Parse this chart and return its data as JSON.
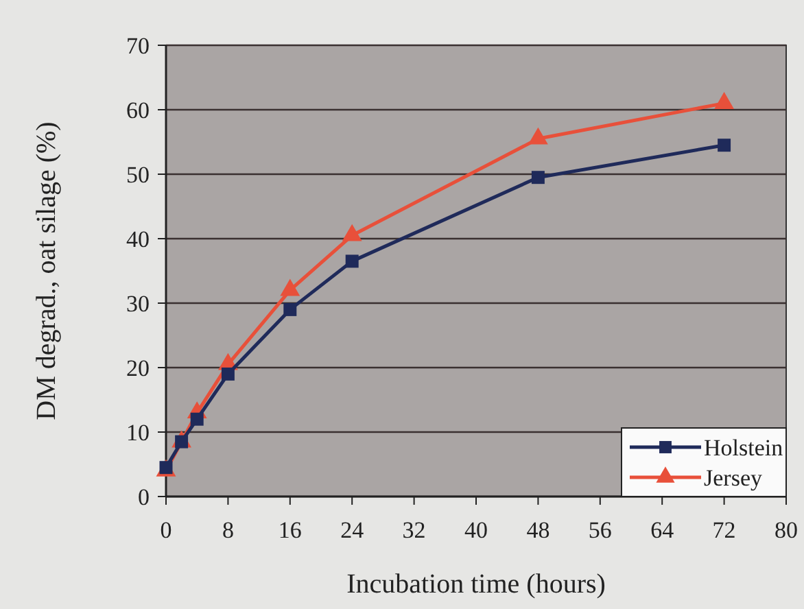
{
  "chart_data": {
    "type": "line",
    "xlabel": "Incubation time (hours)",
    "ylabel": "DM degrad., oat silage (%)",
    "x": [
      0,
      2,
      4,
      8,
      16,
      24,
      48,
      72
    ],
    "series": [
      {
        "name": "Holstein",
        "color": "#1f2a5a",
        "marker": "square",
        "values": [
          4.5,
          8.5,
          12,
          19,
          29,
          36.5,
          49.5,
          54.5
        ]
      },
      {
        "name": "Jersey",
        "color": "#e8503a",
        "marker": "triangle",
        "values": [
          4,
          8.5,
          13,
          20.5,
          32,
          40.5,
          55.5,
          61
        ]
      }
    ],
    "xlim": [
      0,
      80
    ],
    "xticks": [
      0,
      8,
      16,
      24,
      32,
      40,
      48,
      56,
      64,
      72,
      80
    ],
    "ylim": [
      0,
      70
    ],
    "yticks": [
      0,
      10,
      20,
      30,
      40,
      50,
      60,
      70
    ],
    "grid": "y",
    "legend": "bottom right",
    "line_style": "solid"
  }
}
